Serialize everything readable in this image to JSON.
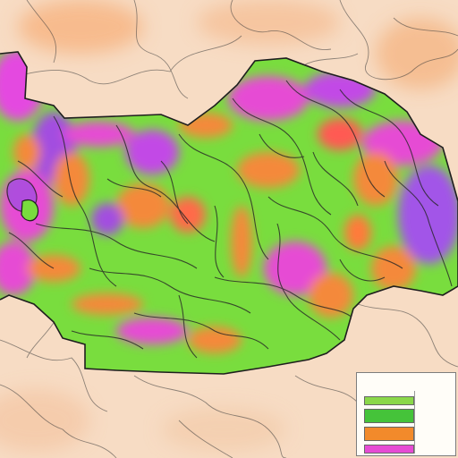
{
  "legend": {
    "title": "",
    "colors": [
      "#8ad84a",
      "#45c33a",
      "#f28a2b",
      "#e64bd4"
    ],
    "labels": [
      "",
      "",
      "",
      ""
    ]
  },
  "captions": [
    "",
    ""
  ],
  "palette": {
    "background": "#f7dcc4",
    "green": "#6fdc3a",
    "orange": "#f4893a",
    "magenta": "#e44ae0",
    "violet": "#a255e8",
    "red": "#ff4d4d",
    "border": "#2b2b2b"
  }
}
